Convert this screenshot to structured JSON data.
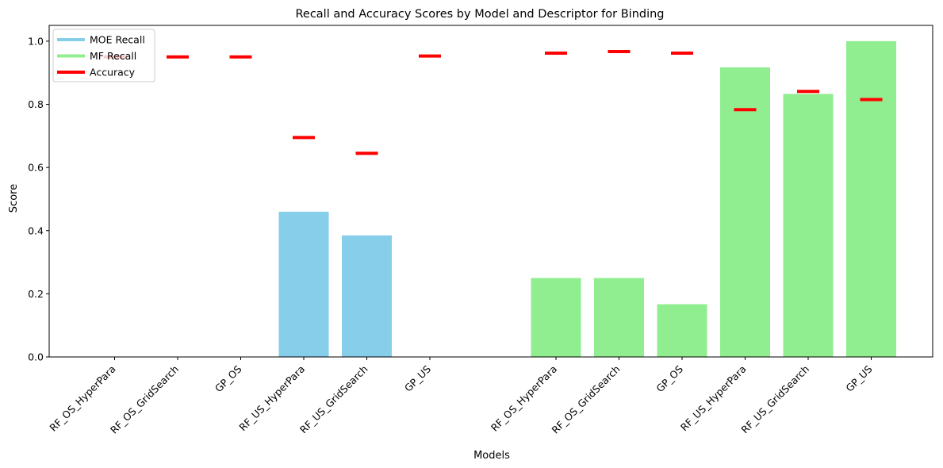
{
  "chart_data": {
    "type": "bar",
    "title": "Recall and Accuracy Scores by Model and Descriptor for Binding",
    "xlabel": "Models",
    "ylabel": "Score",
    "ylim": [
      0,
      1.05
    ],
    "yticks": [
      "0.0",
      "0.2",
      "0.4",
      "0.6",
      "0.8",
      "1.0"
    ],
    "legend_position": "top-left",
    "grid": false,
    "groups": [
      {
        "series": "MOE Recall",
        "color": "#87ceeb",
        "categories": [
          "RF_OS_HyperPara",
          "RF_OS_GridSearch",
          "GP_OS",
          "RF_US_HyperPara",
          "RF_US_GridSearch",
          "GP_US"
        ],
        "recall": [
          0.0,
          0.0,
          0.0,
          0.46,
          0.385,
          0.0
        ],
        "accuracy": [
          0.95,
          0.95,
          0.95,
          0.695,
          0.645,
          0.953
        ]
      },
      {
        "series": "MF Recall",
        "color": "#90ee90",
        "categories": [
          "RF_OS_HyperPara",
          "RF_OS_GridSearch",
          "GP_OS",
          "RF_US_HyperPara",
          "RF_US_GridSearch",
          "GP_US"
        ],
        "recall": [
          0.25,
          0.25,
          0.167,
          0.917,
          0.833,
          1.0
        ],
        "accuracy": [
          0.962,
          0.967,
          0.962,
          0.783,
          0.841,
          0.815
        ]
      }
    ],
    "legend": [
      {
        "label": "MOE Recall",
        "color": "#87ceeb"
      },
      {
        "label": "MF Recall",
        "color": "#90ee90"
      },
      {
        "label": "Accuracy",
        "color": "#ff0000"
      }
    ]
  }
}
